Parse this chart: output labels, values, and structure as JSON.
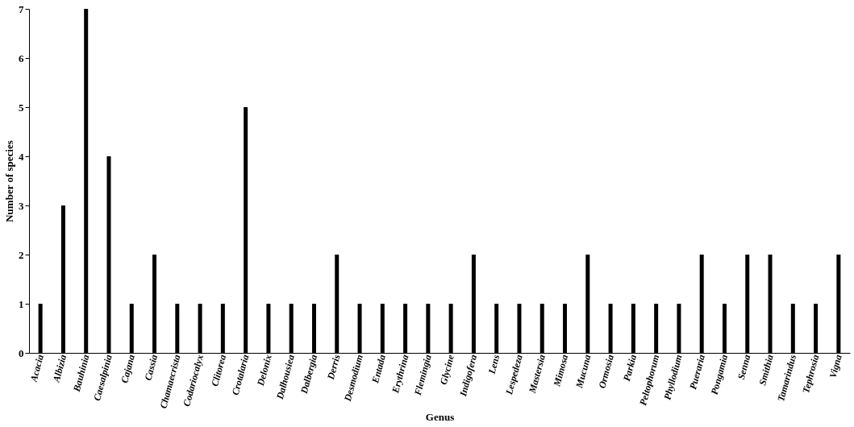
{
  "chart_data": {
    "type": "bar",
    "xlabel": "Genus",
    "ylabel": "Number of species",
    "categories": [
      "Acacia",
      "Albizia",
      "Bauhinia",
      "Caesalpinia",
      "Cajana",
      "Cassia",
      "Chamaecrista",
      "Codariocalyx",
      "Clitorea",
      "Crotalaria",
      "Delonix",
      "Dalhousiea",
      "Dalbergia",
      "Derris",
      "Desmodium",
      "Entada",
      "Erythrina",
      "Flemingia",
      "Glycine",
      "Indigofera",
      "Lens",
      "Lespedeza",
      "Mastersia",
      "Mimosa",
      "Mucuna",
      "Ormosia",
      "Parkia",
      "Peltophorum",
      "Phyllodium",
      "Pueraria",
      "Pongamia",
      "Senna",
      "Smithia",
      "Tamarindus",
      "Tephrosia",
      "Vigna"
    ],
    "values": [
      1,
      3,
      7,
      4,
      1,
      2,
      1,
      1,
      1,
      5,
      1,
      1,
      1,
      2,
      1,
      1,
      1,
      1,
      1,
      2,
      1,
      1,
      1,
      1,
      2,
      1,
      1,
      1,
      1,
      2,
      1,
      2,
      2,
      1,
      1,
      2
    ],
    "color": "#000000",
    "ylim": [
      0,
      7
    ],
    "yticks": [
      0,
      1,
      2,
      3,
      4,
      5,
      6,
      7
    ],
    "grid": false
  }
}
